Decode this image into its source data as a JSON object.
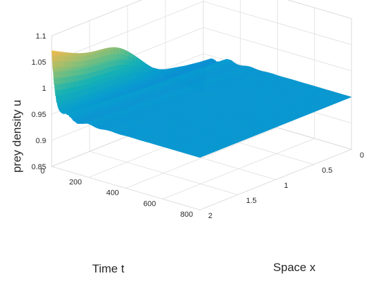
{
  "chart_data": {
    "type": "surface",
    "title": "",
    "xlabel": "Time t",
    "ylabel": "Space x",
    "zlabel": "prey density u",
    "x_range": [
      0,
      800
    ],
    "y_range": [
      0,
      2
    ],
    "z_range": [
      0.85,
      1.1
    ],
    "x_ticks": [
      "0",
      "200",
      "400",
      "600",
      "800"
    ],
    "y_ticks": [
      "0",
      "0.5",
      "1",
      "1.5",
      "2"
    ],
    "z_ticks": [
      "0.85",
      "0.9",
      "0.95",
      "1",
      "1.05",
      "1.1"
    ],
    "grid": true,
    "colormap": "parula",
    "steady_state_u": 0.95,
    "initial_peak_u": 1.1,
    "initial_trough_u": 0.875
  }
}
